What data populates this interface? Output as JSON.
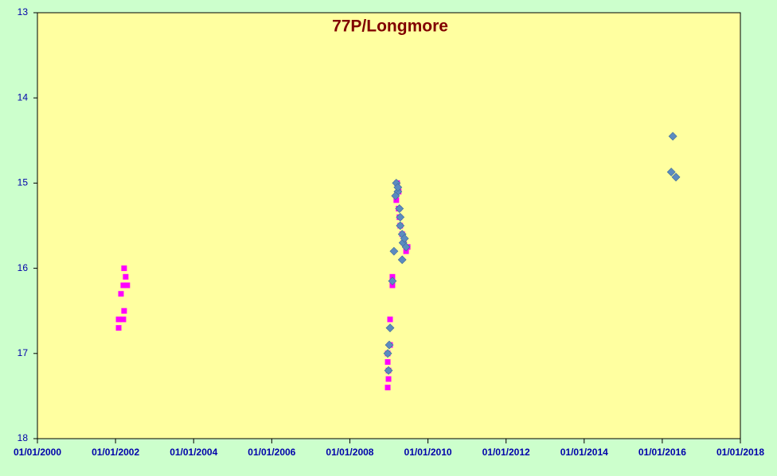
{
  "chart_data": {
    "type": "scatter",
    "title": "77P/Longmore",
    "xlim": [
      2000,
      2018
    ],
    "xticks": [
      {
        "value": 2000,
        "label": "01/01/2000"
      },
      {
        "value": 2002,
        "label": "01/01/2002"
      },
      {
        "value": 2004,
        "label": "01/01/2004"
      },
      {
        "value": 2006,
        "label": "01/01/2006"
      },
      {
        "value": 2008,
        "label": "01/01/2008"
      },
      {
        "value": 2010,
        "label": "01/01/2010"
      },
      {
        "value": 2012,
        "label": "01/01/2012"
      },
      {
        "value": 2014,
        "label": "01/01/2014"
      },
      {
        "value": 2016,
        "label": "01/01/2016"
      },
      {
        "value": 2018,
        "label": "01/01/2018"
      }
    ],
    "ylim": [
      18,
      13
    ],
    "yticks": [
      13,
      14,
      15,
      16,
      17,
      18
    ],
    "series": [
      {
        "color": "#ff00ff",
        "marker": "square",
        "x": [
          2002.22,
          2002.26,
          2002.2,
          2002.3,
          2002.14,
          2002.22,
          2002.08,
          2002.2,
          2002.08,
          2008.97,
          2008.99,
          2008.99,
          2008.97,
          2008.97,
          2009.03,
          2009.03,
          2009.09,
          2009.09,
          2009.21,
          2009.25,
          2009.19,
          2009.25,
          2009.27,
          2009.29,
          2009.34,
          2009.38,
          2009.44,
          2009.48
        ],
        "values": [
          16.0,
          16.1,
          16.2,
          16.2,
          16.3,
          16.5,
          16.6,
          16.6,
          16.7,
          17.4,
          17.3,
          17.2,
          17.1,
          17.0,
          16.9,
          16.6,
          16.2,
          16.1,
          15.0,
          15.1,
          15.2,
          15.3,
          15.4,
          15.5,
          15.6,
          15.7,
          15.8,
          15.75
        ]
      },
      {
        "color": "#5b8bc0",
        "marker": "diamond",
        "x": [
          2008.97,
          2008.99,
          2009.03,
          2009.01,
          2009.09,
          2009.13,
          2009.19,
          2009.23,
          2009.17,
          2009.27,
          2009.29,
          2009.34,
          2009.36,
          2009.4,
          2009.44,
          2009.34,
          2009.23,
          2009.29,
          2016.27,
          2016.23,
          2016.35
        ],
        "values": [
          17.0,
          17.2,
          16.7,
          16.9,
          16.15,
          15.8,
          15.0,
          15.1,
          15.15,
          15.3,
          15.4,
          15.6,
          15.7,
          15.65,
          15.75,
          15.9,
          15.05,
          15.5,
          14.45,
          14.87,
          14.93
        ]
      }
    ]
  }
}
